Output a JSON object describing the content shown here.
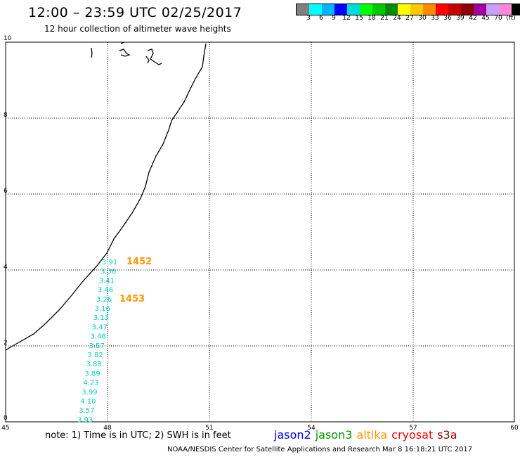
{
  "header": {
    "title": "12:00 – 23:59 UTC 02/25/2017",
    "subtitle": "12 hour collection of altimeter wave heights"
  },
  "colorbar": {
    "colors": [
      "#808080",
      "#00ffff",
      "#00b4ff",
      "#0000ff",
      "#00dcdc",
      "#00ff00",
      "#00c800",
      "#008c00",
      "#ffff00",
      "#ffc800",
      "#ff8c00",
      "#ff0000",
      "#c80000",
      "#8c0000",
      "#a000a0",
      "#c8a0ff",
      "#ff88dc",
      "#000000"
    ],
    "labels": [
      "3",
      "6",
      "9",
      "12",
      "15",
      "18",
      "21",
      "24",
      "27",
      "30",
      "33",
      "36",
      "39",
      "42",
      "45",
      "70",
      "(ft)"
    ]
  },
  "map": {
    "x_ticks": [
      "45",
      "48",
      "51",
      "54",
      "57",
      "60"
    ],
    "y_ticks": [
      "10",
      "8",
      "6",
      "4",
      "2",
      "0"
    ],
    "times": [
      {
        "label": "1452",
        "color": "#ff9900"
      },
      {
        "label": "1453",
        "color": "#ff9900"
      }
    ],
    "swh": [
      "3.91",
      "3.36",
      "3.41",
      "3.46",
      "3.26",
      "3.16",
      "3.13",
      "3.47",
      "3.48",
      "3.57",
      "3.82",
      "3.88",
      "3.89",
      "4.23",
      "3.99",
      "4.10",
      "3.57",
      "3.93"
    ],
    "swh_color": "#00cccc"
  },
  "footer": {
    "note": "note: 1) Time is in UTC; 2) SWH is in feet",
    "legend": [
      {
        "label": "jason2",
        "color": "#0000ff"
      },
      {
        "label": "jason3",
        "color": "#009900"
      },
      {
        "label": "altika",
        "color": "#ff9900"
      },
      {
        "label": "cryosat",
        "color": "#ff0000"
      },
      {
        "label": "s3a",
        "color": "#990000"
      }
    ],
    "credit": "NOAA/NESDIS Center for Satellite Applications and Research    Mar  8 16:18:21 UTC 2017"
  }
}
